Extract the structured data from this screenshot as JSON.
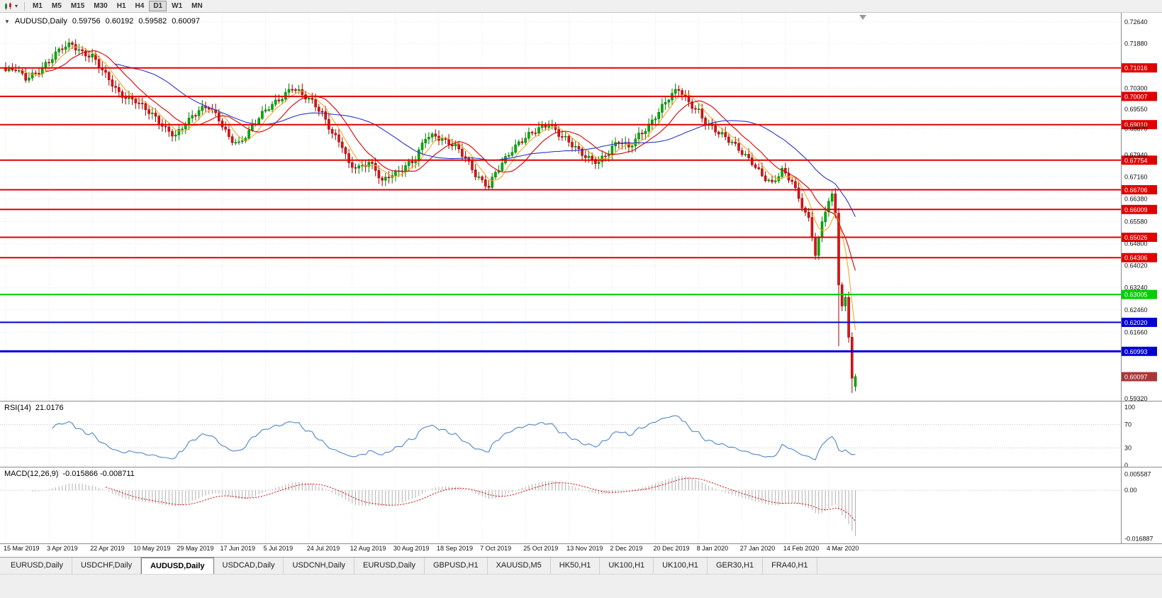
{
  "toolbar": {
    "timeframes": [
      "M1",
      "M5",
      "M15",
      "M30",
      "H1",
      "H4",
      "D1",
      "W1",
      "MN"
    ],
    "active_timeframe": "D1"
  },
  "quote": {
    "symbol": "AUDUSD,Daily",
    "open": "0.59756",
    "high": "0.60192",
    "low": "0.59582",
    "close": "0.60097",
    "collapse_icon": "▼"
  },
  "indicators": {
    "rsi_label": "RSI(14)",
    "rsi_value": "21.0176",
    "macd_label": "MACD(12,26,9)",
    "macd_values": "-0.015866 -0.008711"
  },
  "tabs": {
    "items": [
      "EURUSD,Daily",
      "USDCHF,Daily",
      "AUDUSD,Daily",
      "USDCAD,Daily",
      "USDCNH,Daily",
      "EURUSD,Daily",
      "GBPUSD,H1",
      "XAUUSD,M5",
      "HK50,H1",
      "UK100,H1",
      "UK100,H1",
      "GER30,H1",
      "FRA40,H1"
    ],
    "active_index": 2
  },
  "chart_data": {
    "type": "candlestick",
    "symbol": "AUDUSD",
    "timeframe": "Daily",
    "price_range": {
      "max": 0.72965,
      "min": 0.59245
    },
    "num_bars": 256,
    "bars_per_date_label": 13,
    "axis_ticks": [
      {
        "label": "0.72640",
        "price": 0.7264
      },
      {
        "label": "0.71880",
        "price": 0.7188
      },
      {
        "label": "0.70300",
        "price": 0.703
      },
      {
        "label": "0.69550",
        "price": 0.6955
      },
      {
        "label": "0.68870",
        "price": 0.6887
      },
      {
        "label": "0.67940",
        "price": 0.6794
      },
      {
        "label": "0.67160",
        "price": 0.6716
      },
      {
        "label": "0.66380",
        "price": 0.6638
      },
      {
        "label": "0.65580",
        "price": 0.6558
      },
      {
        "label": "0.64800",
        "price": 0.648
      },
      {
        "label": "0.64020",
        "price": 0.6402
      },
      {
        "label": "0.63240",
        "price": 0.6324
      },
      {
        "label": "0.62460",
        "price": 0.6246
      },
      {
        "label": "0.61660",
        "price": 0.6166
      },
      {
        "label": "0.59320",
        "price": 0.5932
      }
    ],
    "marked_levels": [
      {
        "label": "0.71016",
        "price": 0.71016,
        "color": "red",
        "width": 2
      },
      {
        "label": "0.70007",
        "price": 0.70007,
        "color": "red",
        "width": 2
      },
      {
        "label": "0.69010",
        "price": 0.6901,
        "color": "red",
        "width": 2
      },
      {
        "label": "0.67754",
        "price": 0.67754,
        "color": "red",
        "width": 2
      },
      {
        "label": "0.66706",
        "price": 0.66706,
        "color": "red",
        "width": 2
      },
      {
        "label": "0.66009",
        "price": 0.66009,
        "color": "red",
        "width": 2
      },
      {
        "label": "0.65026",
        "price": 0.65026,
        "color": "red",
        "width": 2
      },
      {
        "label": "0.64306",
        "price": 0.64306,
        "color": "red",
        "width": 2
      },
      {
        "label": "0.63005",
        "price": 0.63005,
        "color": "green",
        "width": 2
      },
      {
        "label": "0.62020",
        "price": 0.6202,
        "color": "blue",
        "width": 2
      },
      {
        "label": "0.60993",
        "price": 0.60993,
        "color": "blue",
        "width": 3
      }
    ],
    "current_price": {
      "label": "0.60097",
      "price": 0.60097
    },
    "date_labels": [
      "15 Mar 2019",
      "3 Apr 2019",
      "22 Apr 2019",
      "10 May 2019",
      "29 May 2019",
      "17 Jun 2019",
      "5 Jul 2019",
      "24 Jul 2019",
      "12 Aug 2019",
      "30 Aug 2019",
      "18 Sep 2019",
      "7 Oct 2019",
      "25 Oct 2019",
      "13 Nov 2019",
      "2 Dec 2019",
      "20 Dec 2019",
      "8 Jan 2020",
      "27 Jan 2020",
      "14 Feb 2020",
      "4 Mar 2020"
    ],
    "price_anchors": [
      [
        0,
        0.7085
      ],
      [
        3,
        0.71
      ],
      [
        6,
        0.7072
      ],
      [
        10,
        0.709
      ],
      [
        13,
        0.7118
      ],
      [
        17,
        0.7172
      ],
      [
        20,
        0.719
      ],
      [
        23,
        0.716
      ],
      [
        26,
        0.7142
      ],
      [
        30,
        0.707
      ],
      [
        34,
        0.7012
      ],
      [
        39,
        0.6992
      ],
      [
        44,
        0.693
      ],
      [
        48,
        0.6882
      ],
      [
        51,
        0.6868
      ],
      [
        54,
        0.6912
      ],
      [
        58,
        0.6948
      ],
      [
        61,
        0.6958
      ],
      [
        64,
        0.692
      ],
      [
        67,
        0.6862
      ],
      [
        70,
        0.6836
      ],
      [
        73,
        0.6872
      ],
      [
        76,
        0.692
      ],
      [
        79,
        0.6962
      ],
      [
        82,
        0.6995
      ],
      [
        86,
        0.7036
      ],
      [
        89,
        0.7002
      ],
      [
        92,
        0.6976
      ],
      [
        95,
        0.694
      ],
      [
        98,
        0.6878
      ],
      [
        101,
        0.6832
      ],
      [
        103,
        0.6758
      ],
      [
        106,
        0.674
      ],
      [
        109,
        0.6765
      ],
      [
        111,
        0.6745
      ],
      [
        113,
        0.6705
      ],
      [
        115,
        0.6728
      ],
      [
        117,
        0.673
      ],
      [
        120,
        0.6748
      ],
      [
        123,
        0.6772
      ],
      [
        126,
        0.686
      ],
      [
        129,
        0.6868
      ],
      [
        132,
        0.6845
      ],
      [
        135,
        0.682
      ],
      [
        138,
        0.6775
      ],
      [
        141,
        0.6725
      ],
      [
        143,
        0.6705
      ],
      [
        145,
        0.669
      ],
      [
        147,
        0.6735
      ],
      [
        149,
        0.6762
      ],
      [
        151,
        0.679
      ],
      [
        154,
        0.683
      ],
      [
        157,
        0.6868
      ],
      [
        160,
        0.6895
      ],
      [
        163,
        0.6905
      ],
      [
        166,
        0.6862
      ],
      [
        169,
        0.6835
      ],
      [
        172,
        0.681
      ],
      [
        175,
        0.6788
      ],
      [
        178,
        0.6772
      ],
      [
        181,
        0.68
      ],
      [
        184,
        0.6838
      ],
      [
        187,
        0.6822
      ],
      [
        190,
        0.687
      ],
      [
        193,
        0.69
      ],
      [
        196,
        0.6942
      ],
      [
        199,
        0.699
      ],
      [
        202,
        0.7028
      ],
      [
        205,
        0.6985
      ],
      [
        208,
        0.6952
      ],
      [
        210,
        0.6905
      ],
      [
        214,
        0.6865
      ],
      [
        218,
        0.684
      ],
      [
        221,
        0.681
      ],
      [
        224,
        0.677
      ],
      [
        227,
        0.6715
      ],
      [
        230,
        0.6685
      ],
      [
        233,
        0.674
      ],
      [
        236,
        0.6708
      ],
      [
        239,
        0.661
      ],
      [
        241,
        0.657
      ],
      [
        243,
        0.6438
      ],
      [
        245,
        0.6555
      ],
      [
        247,
        0.663
      ],
      [
        248,
        0.6656
      ],
      [
        249,
        0.6588
      ],
      [
        250,
        0.6335
      ],
      [
        251,
        0.626
      ],
      [
        252,
        0.629
      ],
      [
        253,
        0.615
      ],
      [
        254,
        0.6005
      ],
      [
        255,
        0.60097
      ]
    ],
    "last_candle": {
      "open": 0.59756,
      "high": 0.60192,
      "low": 0.59582,
      "close": 0.60097
    },
    "wick_low_overrides": {
      "250": 0.6118,
      "254": 0.5952
    },
    "moving_averages": [
      {
        "period": 6,
        "color": "#f5a623"
      },
      {
        "period": 13,
        "color": "#d40000"
      },
      {
        "period": 34,
        "color": "#2b35c8"
      }
    ],
    "rsi": {
      "period": 14,
      "value": 21.0176,
      "levels": [
        "100",
        "70",
        "30",
        "0"
      ]
    },
    "macd": {
      "fast": 12,
      "slow": 26,
      "signal": 9,
      "axis_labels": [
        {
          "label": "0.005587",
          "value": 0.005587
        },
        {
          "label": "0.00",
          "value": 0
        },
        {
          "label": "-0.016887",
          "value": -0.016887
        }
      ]
    },
    "colors": {
      "up": "#00b000",
      "up_border": "#007a00",
      "down": "#e01515",
      "down_border": "#990000",
      "grid": "#e7e7e7",
      "rsi_line": "#4f86c6",
      "macd_hist": "#b0b0b0",
      "macd_signal": "#d40000",
      "level_red": "#e00000",
      "level_green": "#00cf00",
      "level_blue": "#0000d2",
      "current_bg": "#a83838"
    }
  }
}
